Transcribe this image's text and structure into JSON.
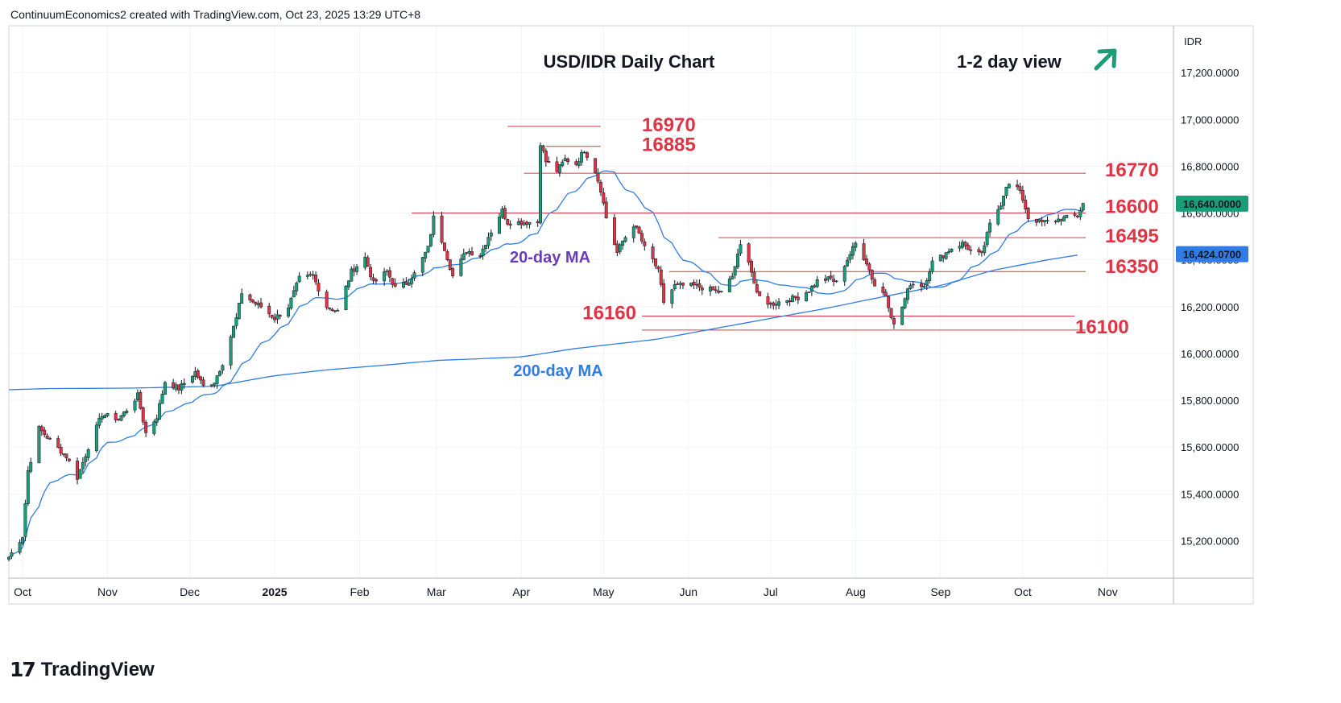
{
  "header": {
    "attribution": "ContinuumEconomics2 created with TradingView.com, Oct 23, 2025 13:29 UTC+8"
  },
  "footer": {
    "logo_mark": "17",
    "logo_text": "TradingView"
  },
  "colors": {
    "up": "#1a9e78",
    "down": "#e03344",
    "ma": "#2f7ce6",
    "level": "#e03344",
    "ma20_label": "#6a3db8",
    "arrow": "#1a9e78"
  },
  "chart_data": {
    "type": "candlestick",
    "title": "USD/IDR Daily Chart",
    "subtitle": "1-2 day view",
    "view_arrow": "up-right",
    "currency_label": "IDR",
    "ylim": [
      15040,
      17400
    ],
    "y_ticks": [
      15200,
      15400,
      15600,
      15800,
      16000,
      16200,
      16400,
      16600,
      16800,
      17000,
      17200
    ],
    "y_tick_labels": [
      "15,200.0000",
      "15,400.0000",
      "15,600.0000",
      "15,800.0000",
      "16,000.0000",
      "16,200.0000",
      "16,400.0000",
      "16,600.0000",
      "16,800.0000",
      "17,000.0000",
      "17,200.0000"
    ],
    "x_range": [
      "2024-09-26",
      "2025-11-25"
    ],
    "x_ticks": [
      {
        "date": "2024-10-01",
        "label": "Oct"
      },
      {
        "date": "2024-11-01",
        "label": "Nov"
      },
      {
        "date": "2024-12-01",
        "label": "Dec"
      },
      {
        "date": "2025-01-01",
        "label": "2025"
      },
      {
        "date": "2025-02-01",
        "label": "Feb"
      },
      {
        "date": "2025-03-01",
        "label": "Mar"
      },
      {
        "date": "2025-04-01",
        "label": "Apr"
      },
      {
        "date": "2025-05-01",
        "label": "May"
      },
      {
        "date": "2025-06-01",
        "label": "Jun"
      },
      {
        "date": "2025-07-01",
        "label": "Jul"
      },
      {
        "date": "2025-08-01",
        "label": "Aug"
      },
      {
        "date": "2025-09-01",
        "label": "Sep"
      },
      {
        "date": "2025-10-01",
        "label": "Oct"
      },
      {
        "date": "2025-11-01",
        "label": "Nov"
      }
    ],
    "price_badges": [
      {
        "value": "16,640.0000",
        "color": "#1a9e78"
      },
      {
        "value": "16,424.0700",
        "color": "#2f7ce6"
      }
    ],
    "levels": [
      {
        "label": "16970",
        "value": 16970,
        "from": "2025-03-27",
        "to": "2025-04-30"
      },
      {
        "label": "16885",
        "value": 16885,
        "from": "2025-04-10",
        "to": "2025-04-30"
      },
      {
        "label": "16770",
        "value": 16770,
        "from": "2025-04-02",
        "to": "2025-10-24"
      },
      {
        "label": "16600",
        "value": 16600,
        "from": "2025-02-20",
        "to": "2025-10-24"
      },
      {
        "label": "16495",
        "value": 16495,
        "from": "2025-06-12",
        "to": "2025-10-24"
      },
      {
        "label": "16350",
        "value": 16350,
        "from": "2025-05-25",
        "to": "2025-10-24"
      },
      {
        "label": "16160",
        "value": 16160,
        "from": "2025-05-15",
        "to": "2025-10-20"
      },
      {
        "label": "16100",
        "value": 16100,
        "from": "2025-05-15",
        "to": "2025-10-24"
      }
    ],
    "ma_labels": [
      {
        "text": "20-day MA",
        "series": "ma20"
      },
      {
        "text": "200-day MA",
        "series": "ma200"
      }
    ],
    "anchors": [
      [
        "2024-09-26",
        15130
      ],
      [
        "2024-10-01",
        15220
      ],
      [
        "2024-10-03",
        15500
      ],
      [
        "2024-10-07",
        15680
      ],
      [
        "2024-10-11",
        15630
      ],
      [
        "2024-10-17",
        15560
      ],
      [
        "2024-10-21",
        15470
      ],
      [
        "2024-10-25",
        15600
      ],
      [
        "2024-10-30",
        15740
      ],
      [
        "2024-11-05",
        15720
      ],
      [
        "2024-11-08",
        15760
      ],
      [
        "2024-11-12",
        15820
      ],
      [
        "2024-11-15",
        15660
      ],
      [
        "2024-11-19",
        15730
      ],
      [
        "2024-11-22",
        15880
      ],
      [
        "2024-11-27",
        15850
      ],
      [
        "2024-12-03",
        15920
      ],
      [
        "2024-12-06",
        15860
      ],
      [
        "2024-12-10",
        15880
      ],
      [
        "2024-12-13",
        15960
      ],
      [
        "2024-12-18",
        16150
      ],
      [
        "2024-12-20",
        16260
      ],
      [
        "2024-12-24",
        16220
      ],
      [
        "2024-12-27",
        16200
      ],
      [
        "2025-01-01",
        16150
      ],
      [
        "2025-01-06",
        16200
      ],
      [
        "2025-01-10",
        16320
      ],
      [
        "2025-01-15",
        16330
      ],
      [
        "2025-01-20",
        16200
      ],
      [
        "2025-01-24",
        16180
      ],
      [
        "2025-01-29",
        16350
      ],
      [
        "2025-02-03",
        16410
      ],
      [
        "2025-02-06",
        16300
      ],
      [
        "2025-02-11",
        16350
      ],
      [
        "2025-02-14",
        16280
      ],
      [
        "2025-02-18",
        16300
      ],
      [
        "2025-02-21",
        16340
      ],
      [
        "2025-02-26",
        16450
      ],
      [
        "2025-02-28",
        16580
      ],
      [
        "2025-03-04",
        16450
      ],
      [
        "2025-03-07",
        16330
      ],
      [
        "2025-03-12",
        16440
      ],
      [
        "2025-03-17",
        16420
      ],
      [
        "2025-03-20",
        16500
      ],
      [
        "2025-03-25",
        16610
      ],
      [
        "2025-03-27",
        16560
      ],
      [
        "2025-04-07",
        16560
      ],
      [
        "2025-04-08",
        16900
      ],
      [
        "2025-04-10",
        16820
      ],
      [
        "2025-04-14",
        16780
      ],
      [
        "2025-04-17",
        16830
      ],
      [
        "2025-04-21",
        16810
      ],
      [
        "2025-04-24",
        16870
      ],
      [
        "2025-04-28",
        16780
      ],
      [
        "2025-04-30",
        16700
      ],
      [
        "2025-05-02",
        16580
      ],
      [
        "2025-05-06",
        16430
      ],
      [
        "2025-05-08",
        16480
      ],
      [
        "2025-05-12",
        16550
      ],
      [
        "2025-05-14",
        16510
      ],
      [
        "2025-05-16",
        16450
      ],
      [
        "2025-05-19",
        16400
      ],
      [
        "2025-05-21",
        16350
      ],
      [
        "2025-05-23",
        16220
      ],
      [
        "2025-05-27",
        16290
      ],
      [
        "2025-06-03",
        16290
      ],
      [
        "2025-06-10",
        16270
      ],
      [
        "2025-06-13",
        16260
      ],
      [
        "2025-06-17",
        16330
      ],
      [
        "2025-06-20",
        16460
      ],
      [
        "2025-06-23",
        16400
      ],
      [
        "2025-06-26",
        16250
      ],
      [
        "2025-07-01",
        16210
      ],
      [
        "2025-07-07",
        16230
      ],
      [
        "2025-07-11",
        16240
      ],
      [
        "2025-07-15",
        16270
      ],
      [
        "2025-07-18",
        16310
      ],
      [
        "2025-07-23",
        16320
      ],
      [
        "2025-07-25",
        16300
      ],
      [
        "2025-07-28",
        16380
      ],
      [
        "2025-08-01",
        16470
      ],
      [
        "2025-08-05",
        16390
      ],
      [
        "2025-08-08",
        16290
      ],
      [
        "2025-08-12",
        16250
      ],
      [
        "2025-08-15",
        16120
      ],
      [
        "2025-08-18",
        16200
      ],
      [
        "2025-08-21",
        16300
      ],
      [
        "2025-08-26",
        16290
      ],
      [
        "2025-08-29",
        16390
      ],
      [
        "2025-09-02",
        16420
      ],
      [
        "2025-09-05",
        16450
      ],
      [
        "2025-09-09",
        16470
      ],
      [
        "2025-09-12",
        16440
      ],
      [
        "2025-09-16",
        16420
      ],
      [
        "2025-09-19",
        16550
      ],
      [
        "2025-09-23",
        16640
      ],
      [
        "2025-09-25",
        16720
      ],
      [
        "2025-09-29",
        16710
      ],
      [
        "2025-10-01",
        16660
      ],
      [
        "2025-10-03",
        16580
      ],
      [
        "2025-10-08",
        16560
      ],
      [
        "2025-10-13",
        16570
      ],
      [
        "2025-10-17",
        16580
      ],
      [
        "2025-10-21",
        16590
      ],
      [
        "2025-10-23",
        16640
      ]
    ],
    "ma200_anchors": [
      [
        "2024-09-26",
        15845
      ],
      [
        "2024-10-10",
        15850
      ],
      [
        "2024-11-10",
        15852
      ],
      [
        "2024-12-10",
        15860
      ],
      [
        "2025-01-01",
        15905
      ],
      [
        "2025-01-20",
        15930
      ],
      [
        "2025-02-10",
        15950
      ],
      [
        "2025-03-01",
        15970
      ],
      [
        "2025-04-01",
        15985
      ],
      [
        "2025-04-20",
        16020
      ],
      [
        "2025-05-01",
        16035
      ],
      [
        "2025-05-20",
        16060
      ],
      [
        "2025-06-10",
        16105
      ],
      [
        "2025-07-01",
        16150
      ],
      [
        "2025-07-20",
        16190
      ],
      [
        "2025-08-10",
        16240
      ],
      [
        "2025-09-01",
        16290
      ],
      [
        "2025-09-20",
        16355
      ],
      [
        "2025-10-10",
        16400
      ],
      [
        "2025-10-23",
        16424
      ]
    ]
  }
}
